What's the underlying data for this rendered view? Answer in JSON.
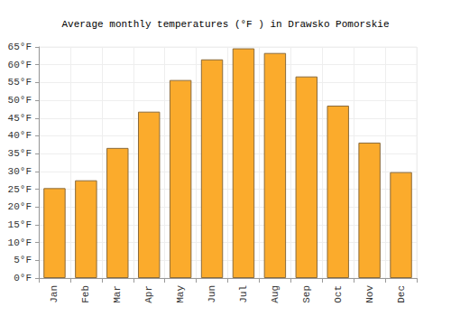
{
  "chart_data": {
    "type": "bar",
    "title": "Average monthly temperatures (°F ) in Drawsko Pomorskie",
    "categories": [
      "Jan",
      "Feb",
      "Mar",
      "Apr",
      "May",
      "Jun",
      "Jul",
      "Aug",
      "Sep",
      "Oct",
      "Nov",
      "Dec"
    ],
    "values": [
      25.3,
      27.5,
      36.6,
      46.8,
      55.7,
      61.5,
      64.6,
      63.3,
      56.7,
      48.5,
      38.1,
      29.8
    ],
    "color": "#fbab2c",
    "ylim": [
      0,
      65
    ],
    "yticks": [
      {
        "value": 0,
        "label": "0°F"
      },
      {
        "value": 5,
        "label": "5°F"
      },
      {
        "value": 10,
        "label": "10°F"
      },
      {
        "value": 15,
        "label": "15°F"
      },
      {
        "value": 20,
        "label": "20°F"
      },
      {
        "value": 25,
        "label": "25°F"
      },
      {
        "value": 30,
        "label": "30°F"
      },
      {
        "value": 35,
        "label": "35°F"
      },
      {
        "value": 40,
        "label": "40°F"
      },
      {
        "value": 45,
        "label": "45°F"
      },
      {
        "value": 50,
        "label": "50°F"
      },
      {
        "value": 55,
        "label": "55°F"
      },
      {
        "value": 60,
        "label": "60°F"
      },
      {
        "value": 65,
        "label": "65°F"
      }
    ],
    "grid": true
  }
}
